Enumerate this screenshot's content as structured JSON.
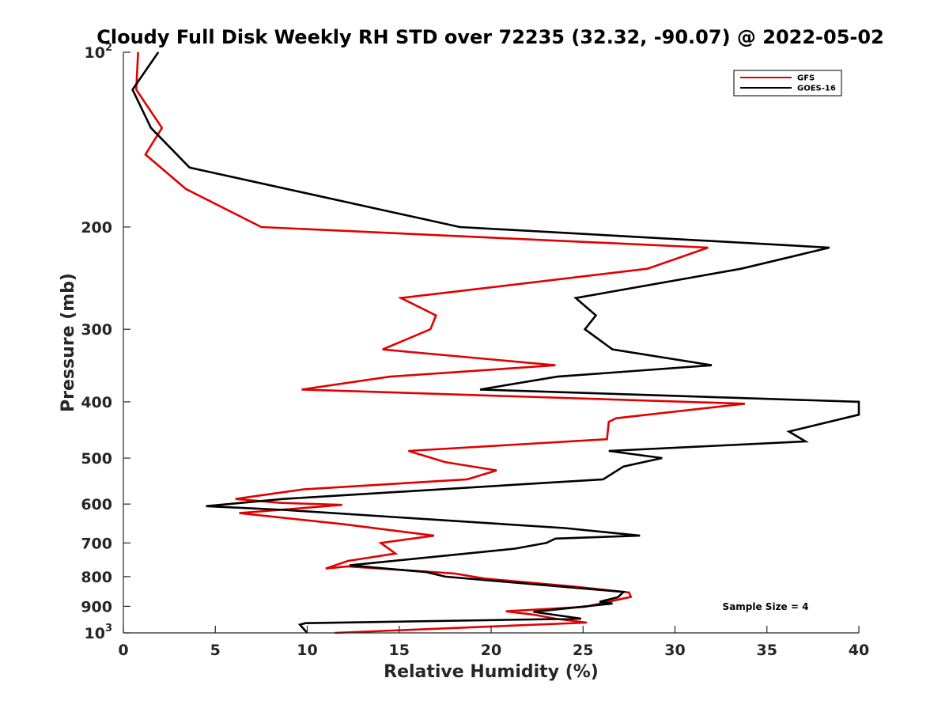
{
  "chart_data": {
    "type": "line",
    "title": "Cloudy Full Disk Weekly RH STD over 72235 (32.32, -90.07) @ 2022-05-02",
    "xlabel": "Relative Humidity (%)",
    "ylabel": "Pressure (mb)",
    "xlim": [
      0,
      40
    ],
    "ylim": [
      100,
      1000
    ],
    "yscale": "log",
    "yreversed": true,
    "x_ticks": [
      "0",
      "5",
      "10",
      "15",
      "20",
      "25",
      "30",
      "35",
      "40"
    ],
    "y_ticks": [
      {
        "value": 100,
        "base": "10",
        "sup": "2"
      },
      {
        "value": 200,
        "base": "200",
        "sup": ""
      },
      {
        "value": 300,
        "base": "300",
        "sup": ""
      },
      {
        "value": 400,
        "base": "400",
        "sup": ""
      },
      {
        "value": 500,
        "base": "500",
        "sup": ""
      },
      {
        "value": 600,
        "base": "600",
        "sup": ""
      },
      {
        "value": 700,
        "base": "700",
        "sup": ""
      },
      {
        "value": 800,
        "base": "800",
        "sup": ""
      },
      {
        "value": 900,
        "base": "900",
        "sup": ""
      },
      {
        "value": 1000,
        "base": "10",
        "sup": "3"
      }
    ],
    "legend_position": "top-right",
    "annotation": "Sample Size = 4",
    "series": [
      {
        "name": "GFS",
        "color": "#e00000",
        "points": [
          [
            0.8,
            100
          ],
          [
            0.7,
            116
          ],
          [
            2.1,
            135
          ],
          [
            1.2,
            150
          ],
          [
            3.4,
            172
          ],
          [
            7.5,
            200
          ],
          [
            31.8,
            217
          ],
          [
            28.5,
            236
          ],
          [
            15.1,
            265
          ],
          [
            17.0,
            284
          ],
          [
            16.7,
            300
          ],
          [
            14.1,
            325
          ],
          [
            23.5,
            346
          ],
          [
            14.5,
            362
          ],
          [
            9.7,
            381
          ],
          [
            33.8,
            403
          ],
          [
            26.8,
            427
          ],
          [
            26.4,
            433
          ],
          [
            26.3,
            464
          ],
          [
            15.5,
            486
          ],
          [
            17.5,
            508
          ],
          [
            20.3,
            525
          ],
          [
            18.7,
            544
          ],
          [
            9.8,
            566
          ],
          [
            6.1,
            588
          ],
          [
            8.5,
            597
          ],
          [
            11.9,
            602
          ],
          [
            6.3,
            622
          ],
          [
            12.0,
            650
          ],
          [
            16.9,
            680
          ],
          [
            14.0,
            700
          ],
          [
            14.8,
            730
          ],
          [
            12.2,
            752
          ],
          [
            11.0,
            775
          ],
          [
            12.2,
            768
          ],
          [
            18.0,
            790
          ],
          [
            19.6,
            806
          ],
          [
            24.5,
            832
          ],
          [
            27.5,
            852
          ],
          [
            27.6,
            867
          ],
          [
            25.1,
            902
          ],
          [
            20.8,
            918
          ],
          [
            22.3,
            930
          ],
          [
            23.5,
            945
          ],
          [
            25.2,
            960
          ],
          [
            11.5,
            1000
          ]
        ]
      },
      {
        "name": "GOES-16",
        "color": "#000000",
        "points": [
          [
            1.9,
            100
          ],
          [
            0.5,
            116
          ],
          [
            1.5,
            135
          ],
          [
            3.6,
            158
          ],
          [
            18.3,
            200
          ],
          [
            38.4,
            217
          ],
          [
            33.6,
            236
          ],
          [
            24.6,
            265
          ],
          [
            25.7,
            284
          ],
          [
            25.1,
            300
          ],
          [
            26.6,
            325
          ],
          [
            32.0,
            346
          ],
          [
            23.6,
            362
          ],
          [
            19.4,
            381
          ],
          [
            40.0,
            400
          ],
          [
            40.0,
            421
          ],
          [
            36.2,
            450
          ],
          [
            37.1,
            468
          ],
          [
            26.4,
            486
          ],
          [
            29.3,
            500
          ],
          [
            27.2,
            517
          ],
          [
            26.1,
            544
          ],
          [
            8.7,
            588
          ],
          [
            4.5,
            605
          ],
          [
            8.7,
            614
          ],
          [
            24.0,
            660
          ],
          [
            28.1,
            680
          ],
          [
            23.5,
            688
          ],
          [
            23.0,
            700
          ],
          [
            21.3,
            716
          ],
          [
            12.3,
            765
          ],
          [
            16.5,
            786
          ],
          [
            17.5,
            800
          ],
          [
            27.2,
            850
          ],
          [
            26.9,
            868
          ],
          [
            25.9,
            884
          ],
          [
            26.6,
            890
          ],
          [
            22.3,
            920
          ],
          [
            24.9,
            945
          ],
          [
            9.9,
            962
          ],
          [
            9.6,
            968
          ],
          [
            10.0,
            1000
          ]
        ]
      }
    ]
  }
}
